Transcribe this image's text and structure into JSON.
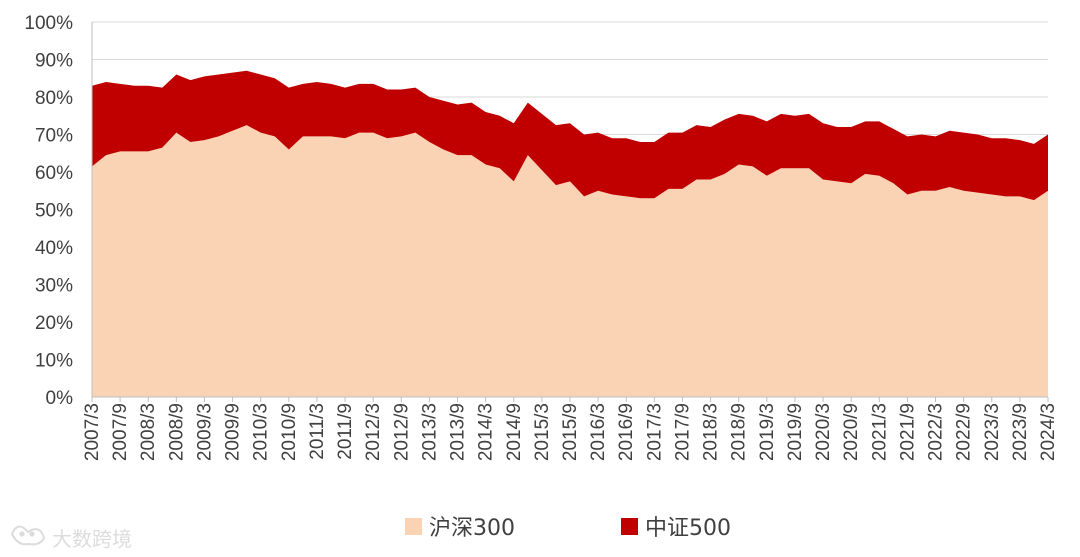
{
  "chart_data": {
    "type": "area",
    "stacked": true,
    "title": "",
    "xlabel": "",
    "ylabel": "",
    "ylim": [
      0,
      100
    ],
    "y_tick_suffix": "%",
    "y_ticks": [
      0,
      10,
      20,
      30,
      40,
      50,
      60,
      70,
      80,
      90,
      100
    ],
    "grid": "horizontal",
    "legend_position": "bottom",
    "x": [
      "2007/3",
      "2007/6",
      "2007/9",
      "2007/12",
      "2008/3",
      "2008/6",
      "2008/9",
      "2008/12",
      "2009/3",
      "2009/6",
      "2009/9",
      "2009/12",
      "2010/3",
      "2010/6",
      "2010/9",
      "2010/12",
      "2011/3",
      "2011/6",
      "2011/9",
      "2011/12",
      "2012/3",
      "2012/6",
      "2012/9",
      "2012/12",
      "2013/3",
      "2013/6",
      "2013/9",
      "2013/12",
      "2014/3",
      "2014/6",
      "2014/9",
      "2014/12",
      "2015/3",
      "2015/6",
      "2015/9",
      "2015/12",
      "2016/3",
      "2016/6",
      "2016/9",
      "2016/12",
      "2017/3",
      "2017/6",
      "2017/9",
      "2017/12",
      "2018/3",
      "2018/6",
      "2018/9",
      "2018/12",
      "2019/3",
      "2019/6",
      "2019/9",
      "2019/12",
      "2020/3",
      "2020/6",
      "2020/9",
      "2020/12",
      "2021/3",
      "2021/6",
      "2021/9",
      "2021/12",
      "2022/3",
      "2022/6",
      "2022/9",
      "2022/12",
      "2023/3",
      "2023/6",
      "2023/9",
      "2023/12",
      "2024/3"
    ],
    "x_tick_labels": [
      "2007/3",
      "2007/9",
      "2008/3",
      "2008/9",
      "2009/3",
      "2009/9",
      "2010/3",
      "2010/9",
      "2011/3",
      "2011/9",
      "2012/3",
      "2012/9",
      "2013/3",
      "2013/9",
      "2014/3",
      "2014/9",
      "2015/3",
      "2015/9",
      "2016/3",
      "2016/9",
      "2017/3",
      "2017/9",
      "2018/3",
      "2018/9",
      "2019/3",
      "2019/9",
      "2020/3",
      "2020/9",
      "2021/3",
      "2021/9",
      "2022/3",
      "2022/9",
      "2023/3",
      "2023/9",
      "2024/3"
    ],
    "series": [
      {
        "name": "沪深300",
        "color": "#fad2b4",
        "values": [
          61.5,
          64.5,
          65.5,
          65.5,
          65.5,
          66.5,
          70.5,
          68.0,
          68.5,
          69.5,
          71.0,
          72.5,
          70.5,
          69.5,
          66.0,
          69.5,
          69.5,
          69.5,
          69.0,
          70.5,
          70.5,
          69.0,
          69.5,
          70.5,
          68.0,
          66.0,
          64.5,
          64.5,
          62.0,
          61.0,
          57.5,
          64.5,
          60.5,
          56.5,
          57.5,
          53.5,
          55.0,
          54.0,
          53.5,
          53.0,
          53.0,
          55.5,
          55.5,
          58.0,
          58.0,
          59.5,
          62.0,
          61.5,
          59.0,
          61.0,
          61.0,
          61.0,
          58.0,
          57.5,
          57.0,
          59.5,
          59.0,
          57.0,
          54.0,
          55.0,
          55.0,
          56.0,
          55.0,
          54.5,
          54.0,
          53.5,
          53.5,
          52.5,
          55.0
        ]
      },
      {
        "name": "中证500",
        "color": "#c00000",
        "values": [
          21.5,
          19.5,
          18.0,
          17.5,
          17.5,
          16.0,
          15.5,
          16.5,
          17.0,
          16.5,
          15.5,
          14.5,
          15.5,
          15.5,
          16.5,
          14.0,
          14.5,
          14.0,
          13.5,
          13.0,
          13.0,
          13.0,
          12.5,
          12.0,
          12.0,
          13.0,
          13.5,
          14.0,
          14.0,
          14.0,
          15.5,
          14.0,
          15.0,
          16.0,
          15.5,
          16.5,
          15.5,
          15.0,
          15.5,
          15.0,
          15.0,
          15.0,
          15.0,
          14.5,
          14.0,
          14.5,
          13.5,
          13.5,
          14.5,
          14.5,
          14.0,
          14.5,
          15.0,
          14.5,
          15.0,
          14.0,
          14.5,
          14.5,
          15.5,
          15.0,
          14.5,
          15.0,
          15.5,
          15.5,
          15.0,
          15.5,
          15.0,
          15.0,
          15.0
        ]
      }
    ]
  },
  "legend": [
    {
      "label": "沪深300",
      "color": "#fad2b4"
    },
    {
      "label": "中证500",
      "color": "#c00000"
    }
  ],
  "watermark": {
    "text": "大数跨境",
    "icon": "cat-logo-icon"
  }
}
